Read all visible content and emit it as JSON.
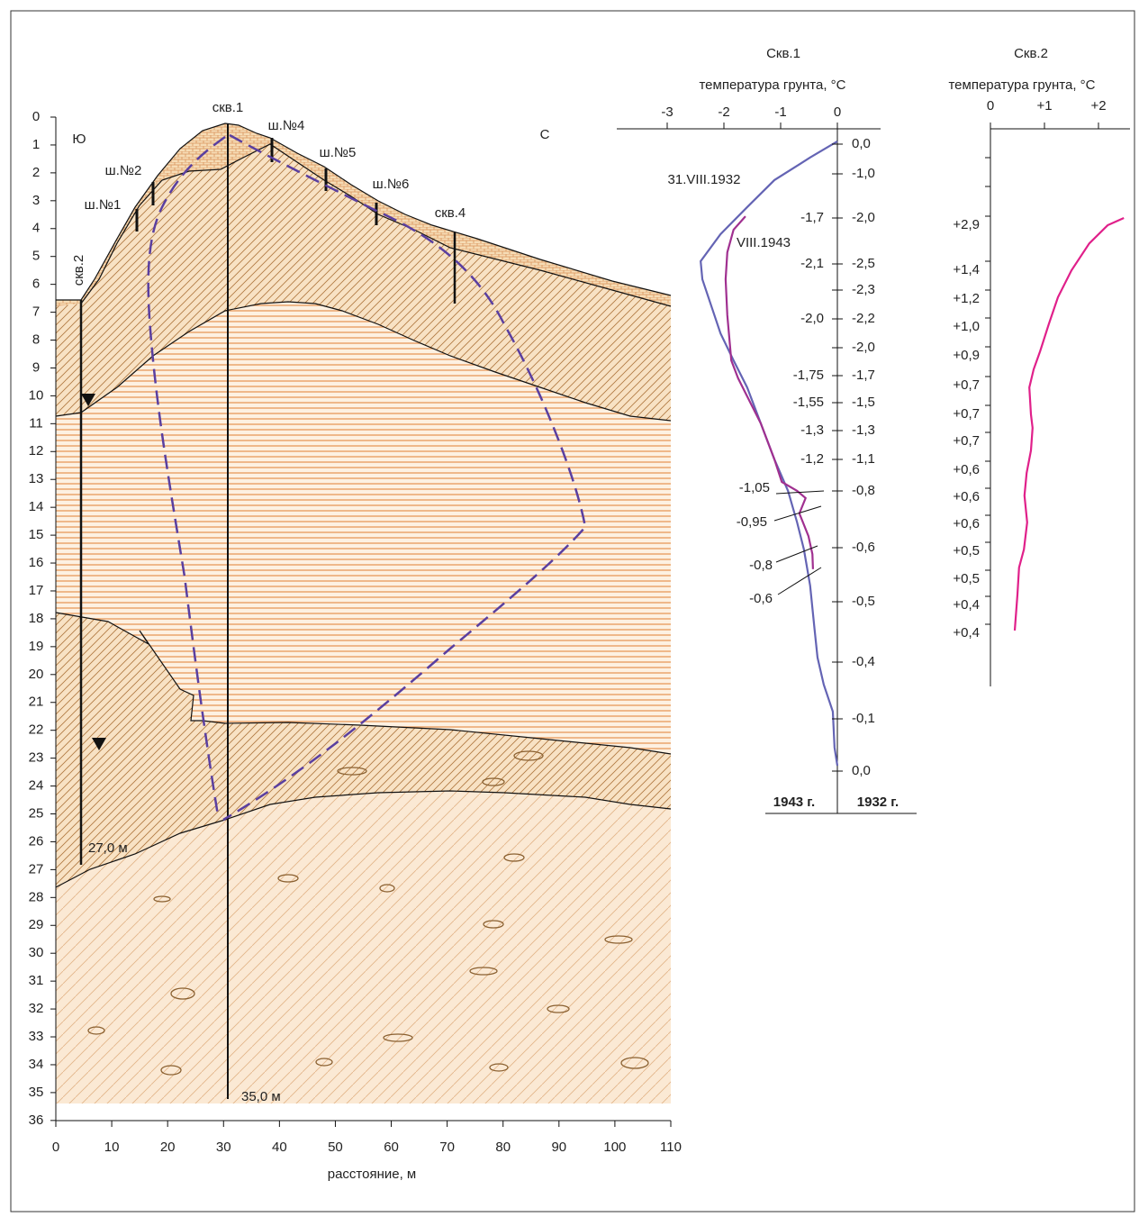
{
  "section": {
    "depth_ticks": [
      0,
      1,
      2,
      3,
      4,
      5,
      6,
      7,
      8,
      9,
      10,
      11,
      12,
      13,
      14,
      15,
      16,
      17,
      18,
      19,
      20,
      21,
      22,
      23,
      24,
      25,
      26,
      27,
      28,
      29,
      30,
      31,
      32,
      33,
      34,
      35,
      36
    ],
    "distance_ticks": [
      0,
      10,
      20,
      30,
      40,
      50,
      60,
      70,
      80,
      90,
      100,
      110
    ],
    "x_label": "расстояние, м",
    "labels": [
      "скв.1",
      "ш.№4",
      "ш.№5",
      "ш.№6",
      "скв.4",
      "ш.№2",
      "ш.№1",
      "скв.2",
      "27,0 м",
      "35,0 м",
      "Ю",
      "С"
    ]
  },
  "profile_1": {
    "title": "Скв.1",
    "axis_label": "температура грунта, °C",
    "ticks": [
      -3,
      -2,
      -1,
      0
    ],
    "series": [
      {
        "name": "31.VIII.1932",
        "year_label": "1932 г.",
        "color": "#6464b4",
        "depth": [
          0.87,
          1.45,
          2.26,
          3.23,
          4.2,
          5.17,
          5.82,
          6.79,
          7.76,
          8.73,
          9.7,
          10.99,
          12.28,
          13.41,
          14.54,
          15.51,
          16.81,
          18.42,
          19.39,
          20.36,
          21.33,
          22.62,
          23.27
        ],
        "temperature": [
          0,
          -0.48,
          -1.11,
          -1.59,
          -2.06,
          -2.41,
          -2.38,
          -2.22,
          -2.06,
          -1.83,
          -1.59,
          -1.35,
          -1.11,
          -0.87,
          -0.71,
          -0.59,
          -0.48,
          -0.4,
          -0.35,
          -0.24,
          -0.08,
          -0.05,
          0
        ],
        "labels": [
          "0,0",
          "-1,0",
          "-2,0",
          "-2,5",
          "-2,3",
          "-2,2",
          "-2,0",
          "-1,7",
          "-1,5",
          "-1,3",
          "-1,1",
          "-0,8",
          "-0,6",
          "-0,5",
          "-0,4",
          "-0,1",
          "0,0"
        ]
      },
      {
        "name": "VIII.1943",
        "year_label": "1943 г.",
        "color": "#a03090",
        "depth": [
          3.56,
          4.04,
          4.85,
          5.82,
          7.11,
          8.73,
          9.37,
          10.02,
          10.99,
          12.28,
          13.09,
          13.41,
          13.67,
          14.22,
          15.03,
          15.68,
          16.22
        ],
        "temperature": [
          -1.62,
          -1.83,
          -1.94,
          -1.97,
          -1.94,
          -1.87,
          -1.75,
          -1.59,
          -1.35,
          -1.11,
          -0.98,
          -0.71,
          -0.56,
          -0.67,
          -0.51,
          -0.44,
          -0.43
        ],
        "labels": [
          "-1,7",
          "-2,1",
          "-2,0",
          "-1,75",
          "-1,55",
          "-1,3",
          "-1,2",
          "-1,05",
          "-0,95",
          "-0,8",
          "-0,6"
        ]
      }
    ]
  },
  "profile_2": {
    "title": "Скв.2",
    "axis_label": "температура грунта, °C",
    "ticks": [
      0,
      {
        "value": 1,
        "label": "+1"
      },
      {
        "value": 2,
        "label": "+2"
      }
    ],
    "series": [
      {
        "color": "#e0208a",
        "depth": [
          3.62,
          3.88,
          4.53,
          5.5,
          6.46,
          7.43,
          8.4,
          9.05,
          9.7,
          10.67,
          11.15,
          11.96,
          12.77,
          13.58,
          14.54,
          15.51,
          16.16,
          17.13,
          18.42
        ],
        "temperature": [
          2.47,
          2.17,
          1.83,
          1.5,
          1.25,
          1.08,
          0.92,
          0.8,
          0.72,
          0.75,
          0.78,
          0.75,
          0.67,
          0.63,
          0.68,
          0.62,
          0.53,
          0.5,
          0.45
        ],
        "labels": [
          "+2,9",
          "+1,4",
          "+1,2",
          "+1,0",
          "+0,9",
          "+0,7",
          "+0,7",
          "+0,7",
          "+0,6",
          "+0,6",
          "+0,6",
          "+0,5",
          "+0,5",
          "+0,4",
          "+0,4"
        ]
      }
    ]
  }
}
